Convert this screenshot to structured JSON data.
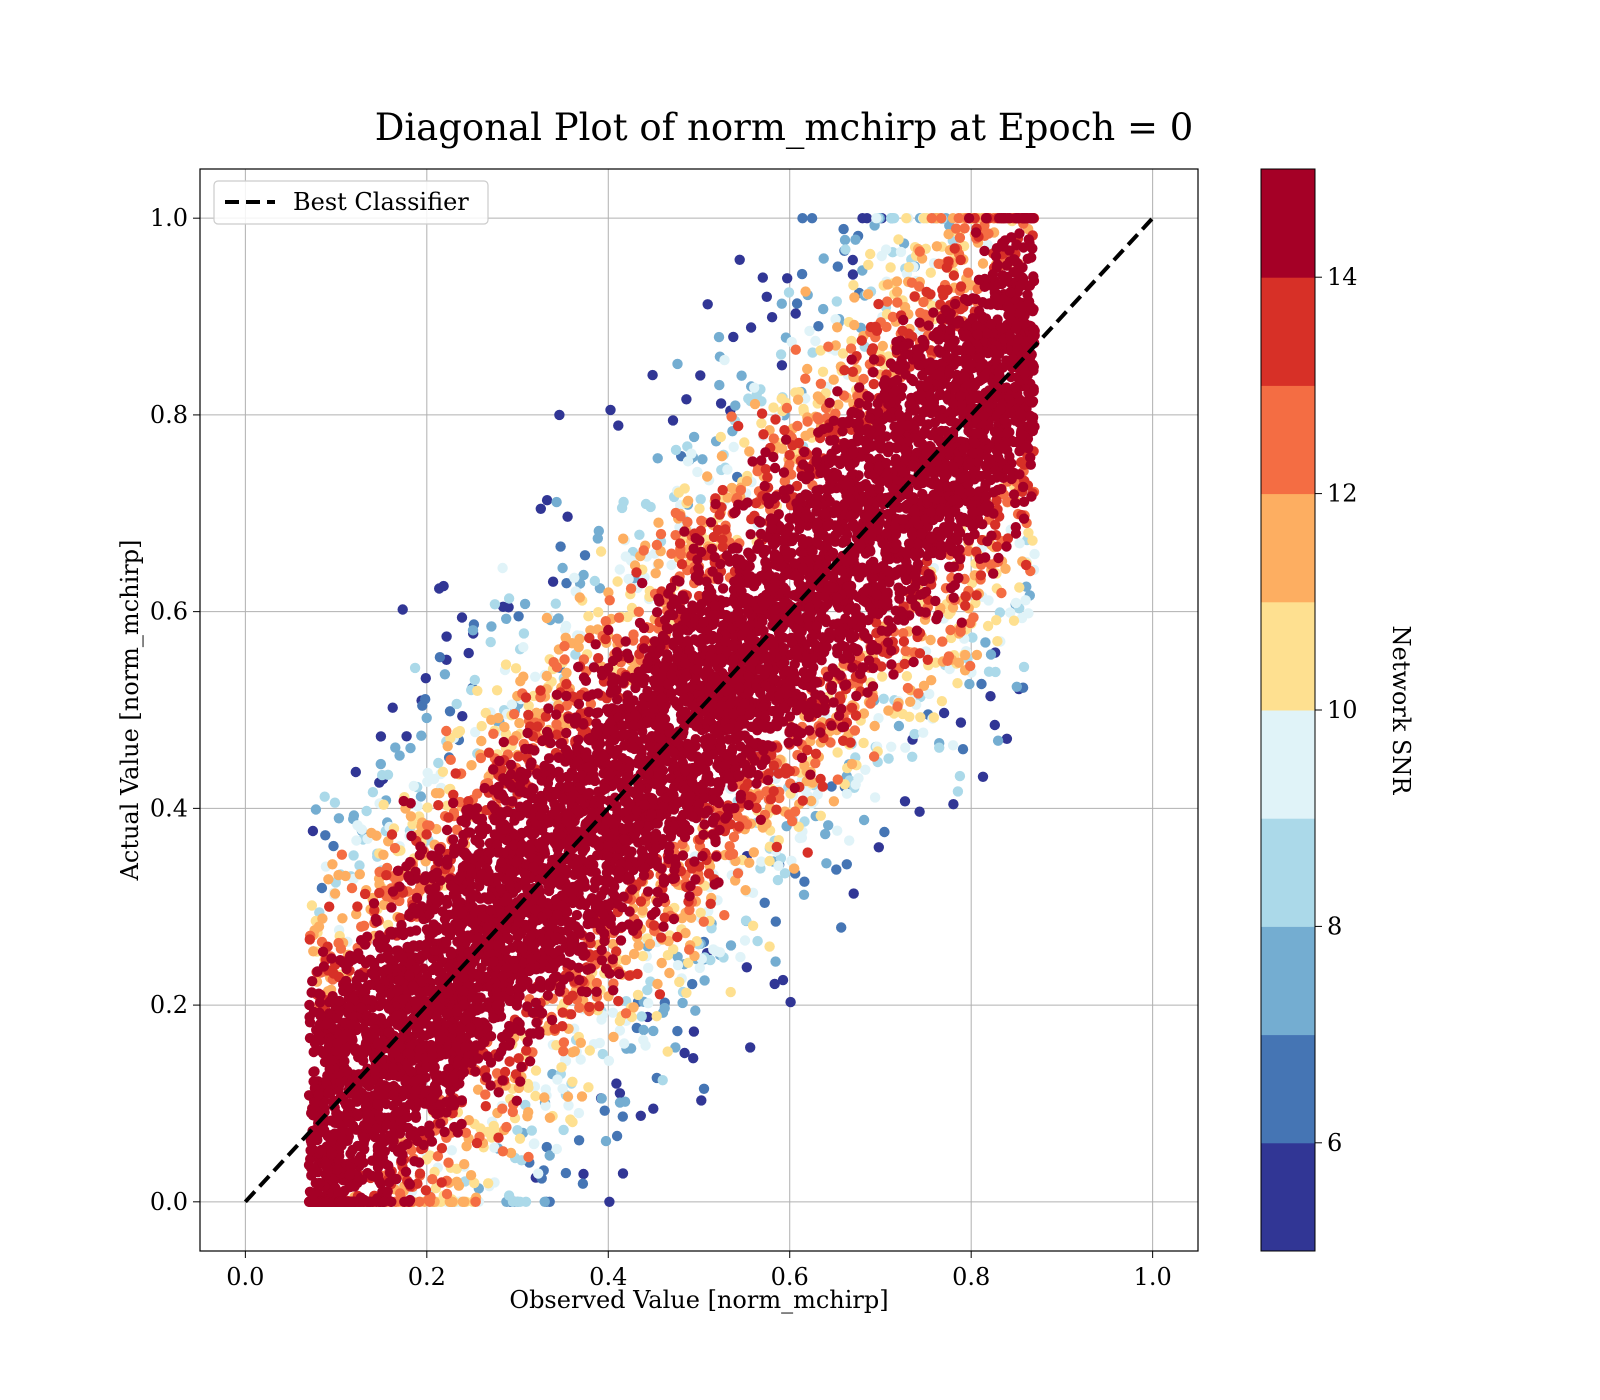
{
  "chart_data": {
    "type": "scatter",
    "title": "Diagonal Plot of norm_mchirp at Epoch = 0",
    "xlabel": "Observed Value [norm_mchirp]",
    "ylabel": "Actual Value [norm_mchirp]",
    "xlim": [
      -0.05,
      1.05
    ],
    "ylim": [
      -0.05,
      1.05
    ],
    "xticks": [
      "0.0",
      "0.2",
      "0.4",
      "0.6",
      "0.8",
      "1.0"
    ],
    "yticks": [
      "0.0",
      "0.2",
      "0.4",
      "0.6",
      "0.8",
      "1.0"
    ],
    "grid": true,
    "legend": {
      "position": "top-left",
      "entries": [
        {
          "label": "Best Classifier",
          "style": "dashed",
          "color": "#000000"
        }
      ]
    },
    "reference_line": {
      "label": "Best Classifier",
      "x": [
        0.0,
        1.0
      ],
      "y": [
        0.0,
        1.0
      ]
    },
    "scatter_region": {
      "description_values": {
        "x_range": [
          0.07,
          0.87
        ],
        "y_range": [
          0.0,
          1.0
        ],
        "band_center": "y = x",
        "band_half_width": 0.15
      },
      "high_snr_color": "#a50026",
      "point_count": 9000
    },
    "colorbar": {
      "label": "Network SNR",
      "min": 5.0,
      "max": 15.0,
      "ticks": [
        "6",
        "8",
        "10",
        "12",
        "14"
      ],
      "tick_values": [
        6,
        8,
        10,
        12,
        14
      ],
      "colors": [
        "#313695",
        "#4575b4",
        "#74add1",
        "#abd9e9",
        "#e0f3f8",
        "#fee090",
        "#fdae61",
        "#f46d43",
        "#d73027",
        "#a50026"
      ]
    }
  }
}
